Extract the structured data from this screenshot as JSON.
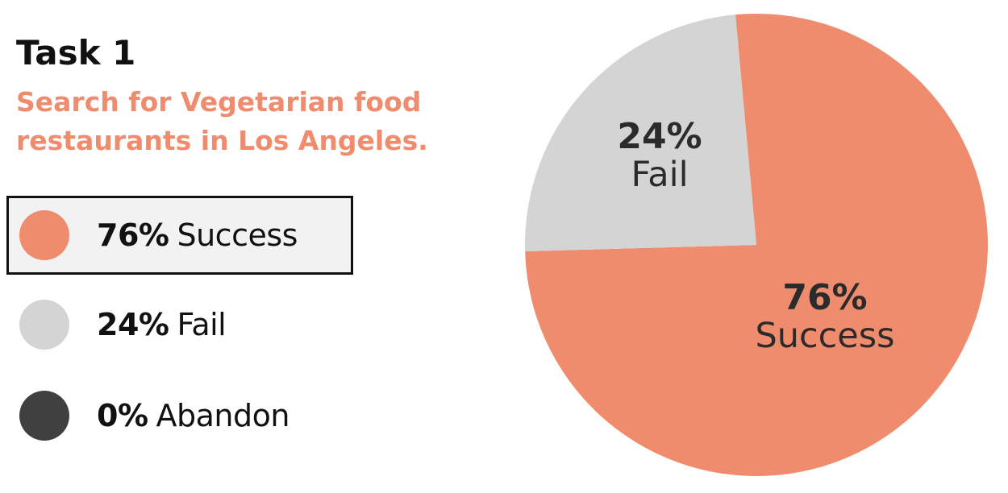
{
  "task": {
    "title": "Task 1",
    "description_line1": "Search for Vegetarian food",
    "description_line2": "restaurants in Los Angeles."
  },
  "colors": {
    "success": "#f08c6e",
    "fail": "#d4d4d4",
    "abandon": "#404040",
    "description": "#f08c6e"
  },
  "legend": [
    {
      "pct": "76%",
      "label": "Success",
      "selected": true
    },
    {
      "pct": "24%",
      "label": "Fail",
      "selected": false
    },
    {
      "pct": "0%",
      "label": "Abandon",
      "selected": false
    }
  ],
  "chart_data": {
    "type": "pie",
    "title": "",
    "slices": [
      {
        "name": "Success",
        "value": 76,
        "color": "#f08c6e",
        "label_pct": "76%"
      },
      {
        "name": "Fail",
        "value": 24,
        "color": "#d4d4d4",
        "label_pct": "24%"
      },
      {
        "name": "Abandon",
        "value": 0,
        "color": "#404040",
        "label_pct": "0%"
      }
    ],
    "start_angle_deg": -5.2,
    "slice_labels_shown": [
      "Success",
      "Fail"
    ]
  }
}
